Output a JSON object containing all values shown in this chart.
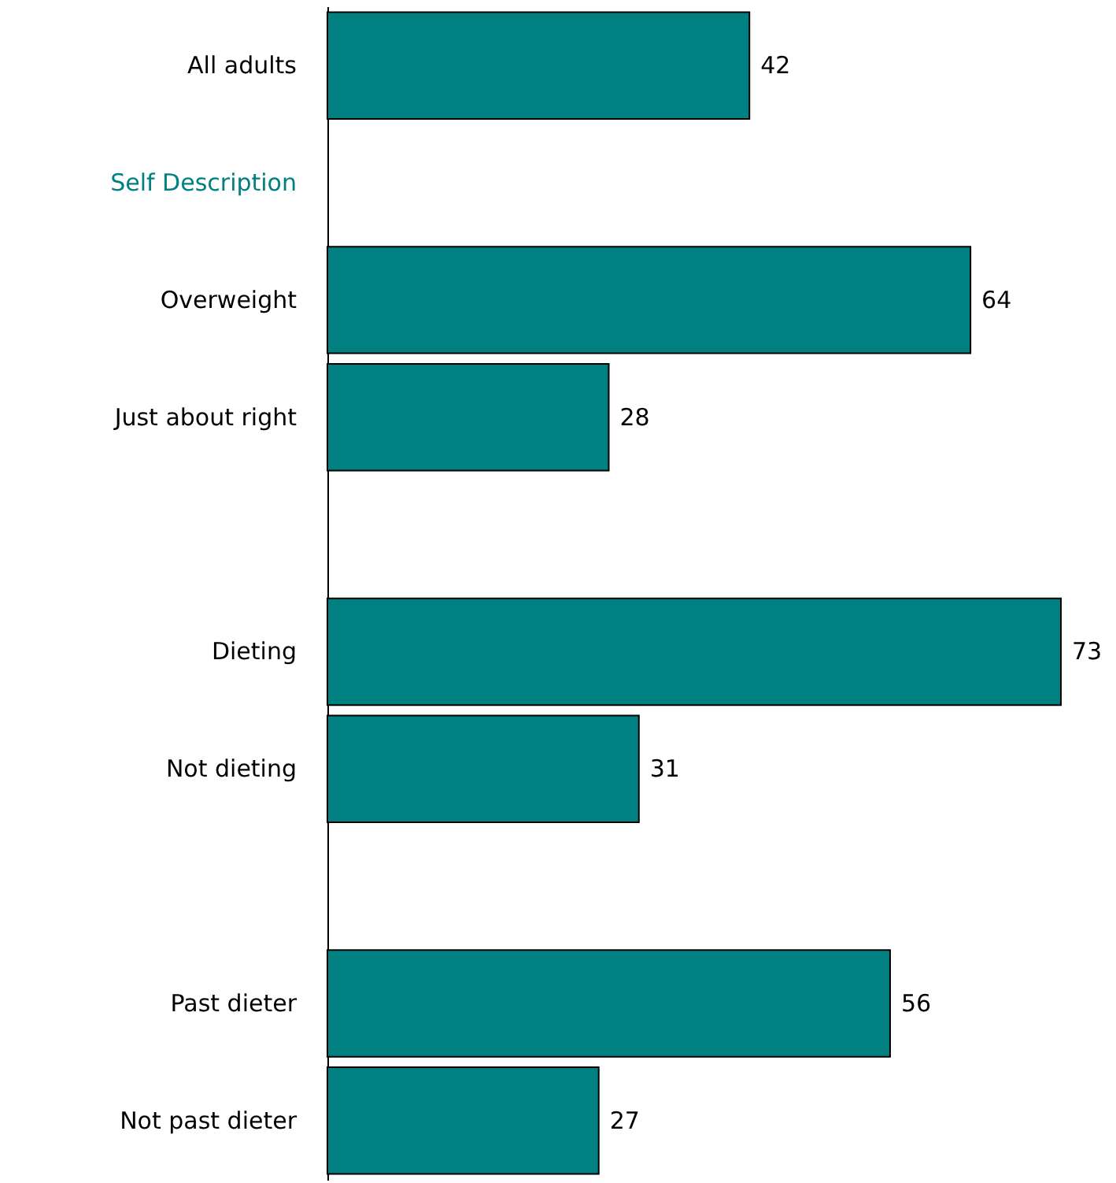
{
  "chart_data": {
    "type": "bar",
    "orientation": "horizontal",
    "categories": [
      "All adults",
      "Self Description",
      "Overweight",
      "Just about right",
      null,
      "Dieting",
      "Not dieting",
      null,
      "Past dieter",
      "Not past dieter"
    ],
    "values": [
      42,
      null,
      64,
      28,
      null,
      73,
      31,
      null,
      56,
      27
    ],
    "color": "#008080",
    "data_labels": true
  }
}
